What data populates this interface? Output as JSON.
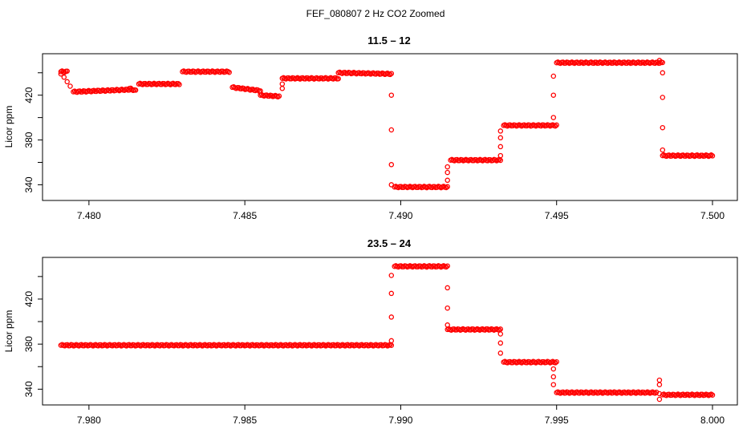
{
  "figure": {
    "title": "FEF_080807  2 Hz CO2 Zoomed"
  },
  "colors": {
    "points": "#ff0000",
    "axes": "#000000"
  },
  "chart_data": [
    {
      "type": "scatter",
      "title": "11.5 – 12",
      "xlabel": "",
      "ylabel": "Licor ppm",
      "xlim": [
        7.479,
        7.5
      ],
      "ylim": [
        331,
        452
      ],
      "xticks": [
        "7.480",
        "7.485",
        "7.490",
        "7.495",
        "7.500"
      ],
      "xtick_values": [
        7.48,
        7.485,
        7.49,
        7.495,
        7.5
      ],
      "yticks": [
        "340",
        "380",
        "420"
      ],
      "ytick_values": [
        340,
        380,
        420
      ],
      "minor_yticks": [
        360,
        400,
        440
      ],
      "grid": false,
      "marker": "open circle",
      "segments": [
        {
          "x0": 7.4791,
          "x1": 7.4793,
          "y0": 441,
          "y1": 441
        },
        {
          "x0": 7.4795,
          "x1": 7.4813,
          "y0": 423,
          "y1": 425
        },
        {
          "x0": 7.4813,
          "x1": 7.4815,
          "y0": 426,
          "y1": 424
        },
        {
          "x0": 7.4816,
          "x1": 7.4829,
          "y0": 430,
          "y1": 430
        },
        {
          "x0": 7.483,
          "x1": 7.4845,
          "y0": 441,
          "y1": 441
        },
        {
          "x0": 7.4846,
          "x1": 7.4855,
          "y0": 427,
          "y1": 424
        },
        {
          "x0": 7.4855,
          "x1": 7.4861,
          "y0": 420,
          "y1": 419
        },
        {
          "x0": 7.4862,
          "x1": 7.488,
          "y0": 435,
          "y1": 435
        },
        {
          "x0": 7.488,
          "x1": 7.4897,
          "y0": 440,
          "y1": 439
        },
        {
          "x0": 7.4898,
          "x1": 7.4915,
          "y0": 338,
          "y1": 338
        },
        {
          "x0": 7.4916,
          "x1": 7.4932,
          "y0": 362,
          "y1": 362
        },
        {
          "x0": 7.4933,
          "x1": 7.495,
          "y0": 393,
          "y1": 393
        },
        {
          "x0": 7.495,
          "x1": 7.4984,
          "y0": 449,
          "y1": 449
        },
        {
          "x0": 7.4984,
          "x1": 7.5,
          "y0": 366,
          "y1": 366
        }
      ],
      "transitions": [
        {
          "x": 7.4791,
          "y": 439
        },
        {
          "x": 7.4792,
          "y": 436
        },
        {
          "x": 7.4793,
          "y": 432
        },
        {
          "x": 7.4794,
          "y": 428
        },
        {
          "x": 7.4862,
          "y": 426
        },
        {
          "x": 7.4862,
          "y": 430
        },
        {
          "x": 7.4897,
          "y": 420
        },
        {
          "x": 7.4897,
          "y": 389
        },
        {
          "x": 7.4897,
          "y": 358
        },
        {
          "x": 7.4897,
          "y": 340
        },
        {
          "x": 7.4915,
          "y": 344
        },
        {
          "x": 7.4915,
          "y": 351
        },
        {
          "x": 7.4915,
          "y": 356
        },
        {
          "x": 7.4932,
          "y": 366
        },
        {
          "x": 7.4932,
          "y": 374
        },
        {
          "x": 7.4932,
          "y": 382
        },
        {
          "x": 7.4932,
          "y": 388
        },
        {
          "x": 7.4949,
          "y": 400
        },
        {
          "x": 7.4949,
          "y": 420
        },
        {
          "x": 7.4949,
          "y": 437
        },
        {
          "x": 7.4983,
          "y": 451
        },
        {
          "x": 7.4984,
          "y": 440
        },
        {
          "x": 7.4984,
          "y": 418
        },
        {
          "x": 7.4984,
          "y": 391
        },
        {
          "x": 7.4984,
          "y": 371
        }
      ]
    },
    {
      "type": "scatter",
      "title": "23.5 – 24",
      "xlabel": "",
      "ylabel": "Licor ppm",
      "xlim": [
        7.979,
        8.0
      ],
      "ylim": [
        331,
        452
      ],
      "xticks": [
        "7.980",
        "7.985",
        "7.990",
        "7.995",
        "8.000"
      ],
      "xtick_values": [
        7.98,
        7.985,
        7.99,
        7.995,
        8.0
      ],
      "yticks": [
        "340",
        "380",
        "420"
      ],
      "ytick_values": [
        340,
        380,
        420
      ],
      "minor_yticks": [
        360,
        400,
        440
      ],
      "grid": false,
      "marker": "open circle",
      "segments": [
        {
          "x0": 7.9791,
          "x1": 7.9897,
          "y0": 379,
          "y1": 379
        },
        {
          "x0": 7.9898,
          "x1": 7.9915,
          "y0": 449,
          "y1": 449
        },
        {
          "x0": 7.9915,
          "x1": 7.9932,
          "y0": 393,
          "y1": 393
        },
        {
          "x0": 7.9933,
          "x1": 7.995,
          "y0": 364,
          "y1": 364
        },
        {
          "x0": 7.995,
          "x1": 7.9982,
          "y0": 337,
          "y1": 337
        },
        {
          "x0": 7.9984,
          "x1": 8.0,
          "y0": 335,
          "y1": 335
        }
      ],
      "transitions": [
        {
          "x": 7.9897,
          "y": 383
        },
        {
          "x": 7.9897,
          "y": 404
        },
        {
          "x": 7.9897,
          "y": 425
        },
        {
          "x": 7.9897,
          "y": 441
        },
        {
          "x": 7.9915,
          "y": 430
        },
        {
          "x": 7.9915,
          "y": 412
        },
        {
          "x": 7.9915,
          "y": 397
        },
        {
          "x": 7.9932,
          "y": 389
        },
        {
          "x": 7.9932,
          "y": 381
        },
        {
          "x": 7.9932,
          "y": 372
        },
        {
          "x": 7.9949,
          "y": 358
        },
        {
          "x": 7.9949,
          "y": 351
        },
        {
          "x": 7.9949,
          "y": 344
        },
        {
          "x": 7.9983,
          "y": 348
        },
        {
          "x": 7.9983,
          "y": 344
        },
        {
          "x": 7.9983,
          "y": 331
        },
        {
          "x": 7.9983,
          "y": 336
        }
      ]
    }
  ]
}
